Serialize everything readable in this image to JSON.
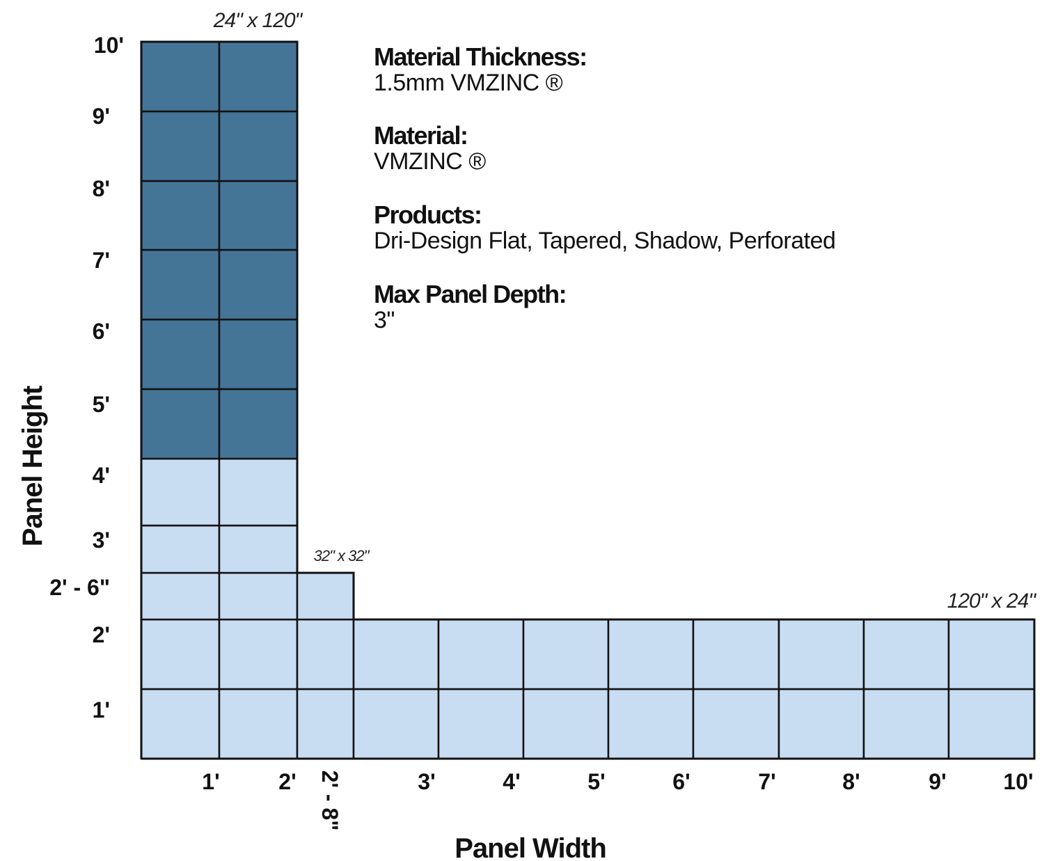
{
  "y_axis": {
    "label": "Panel Height",
    "ticks": [
      "1'",
      "2'",
      "2' - 6\"",
      "3'",
      "4'",
      "5'",
      "6'",
      "7'",
      "8'",
      "9'",
      "10'"
    ]
  },
  "x_axis": {
    "label": "Panel Width",
    "ticks": [
      "1'",
      "2'",
      "2' - 8\"",
      "3'",
      "4'",
      "5'",
      "6'",
      "7'",
      "8'",
      "9'",
      "10'"
    ]
  },
  "annotations": {
    "tall": "24\" x 120\"",
    "square": "32\" x 32\"",
    "wide": "120\" x 24\""
  },
  "info": [
    {
      "label": "Material Thickness:",
      "value": "1.5mm VMZINC ®"
    },
    {
      "label": "Material:",
      "value": "VMZINC ®"
    },
    {
      "label": "Products:",
      "value": "Dri-Design Flat, Tapered, Shadow, Perforated"
    },
    {
      "label": "Max Panel Depth:",
      "value": "3\""
    }
  ],
  "colors": {
    "dark_fill": "#457596",
    "light_fill": "#c8dcf2",
    "stroke": "#111111"
  }
}
